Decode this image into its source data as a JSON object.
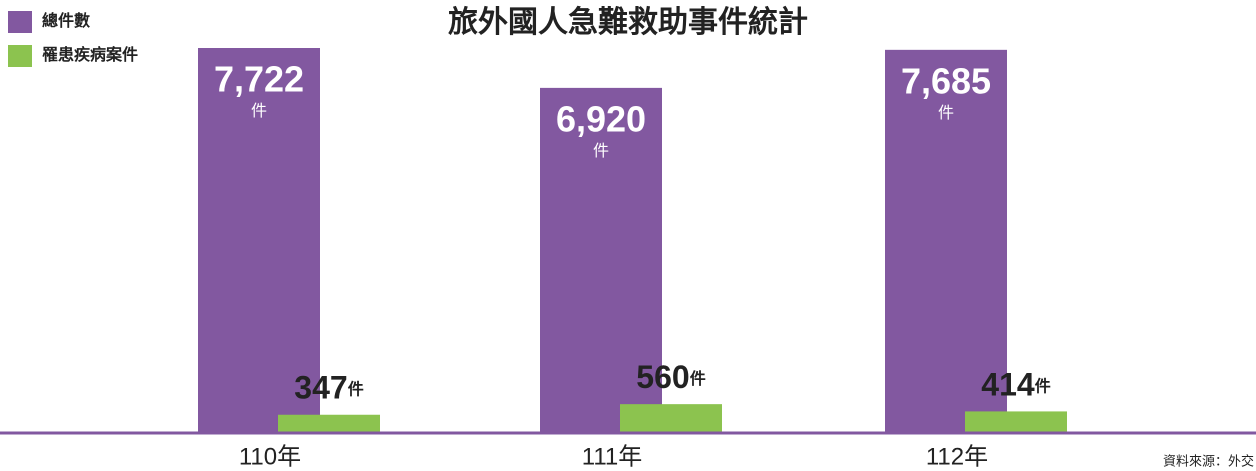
{
  "chart_data": {
    "type": "bar",
    "title": "旅外國人急難救助事件統計",
    "categories": [
      "110年",
      "111年",
      "112年"
    ],
    "series": [
      {
        "name": "總件數",
        "color": "#8258a0",
        "values": [
          7722,
          6920,
          7685
        ],
        "value_labels": [
          "7,722",
          "6,920",
          "7,685"
        ]
      },
      {
        "name": "罹患疾病案件",
        "color": "#8cc34f",
        "values": [
          347,
          560,
          414
        ]
      }
    ],
    "value_unit": "件",
    "source": "資料來源：外交"
  }
}
